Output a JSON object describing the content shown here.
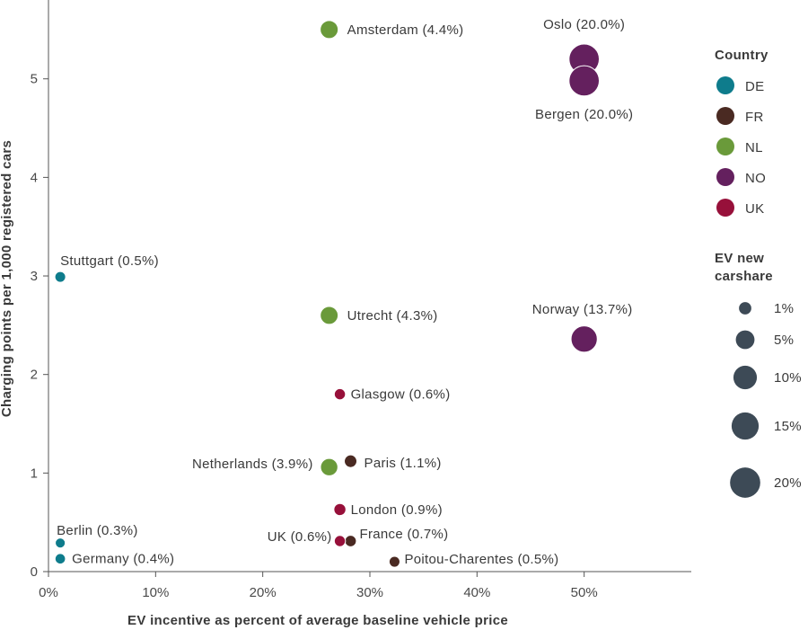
{
  "chart_data": {
    "type": "scatter",
    "xlabel": "EV incentive as percent of average baseline vehicle price",
    "ylabel": "Charging points per 1,000 registered cars",
    "xlim": [
      0,
      60
    ],
    "ylim": [
      0,
      5.8
    ],
    "x_ticks": [
      0,
      10,
      20,
      30,
      40,
      50
    ],
    "x_tick_labels": [
      "0%",
      "10%",
      "20%",
      "30%",
      "40%",
      "50%"
    ],
    "y_ticks": [
      0,
      1,
      2,
      3,
      4,
      5
    ],
    "y_tick_labels": [
      "0",
      "1",
      "2",
      "3",
      "4",
      "5"
    ],
    "size_encoding": "EV new carshare (%)",
    "colors": {
      "DE": "#0e7c8c",
      "FR": "#4a2a22",
      "NL": "#6a9a3a",
      "NO": "#64205e",
      "UK": "#97103a"
    },
    "points": [
      {
        "label": "Amsterdam (4.4%)",
        "country": "NL",
        "x": 26.2,
        "y": 5.5,
        "share": 4.4
      },
      {
        "label": "Oslo (20.0%)",
        "country": "NO",
        "x": 50.0,
        "y": 5.2,
        "share": 20.0
      },
      {
        "label": "Bergen (20.0%)",
        "country": "NO",
        "x": 50.0,
        "y": 4.98,
        "share": 20.0
      },
      {
        "label": "Stuttgart (0.5%)",
        "country": "DE",
        "x": 1.1,
        "y": 2.99,
        "share": 0.5
      },
      {
        "label": "Utrecht (4.3%)",
        "country": "NL",
        "x": 26.2,
        "y": 2.6,
        "share": 4.3
      },
      {
        "label": "Norway (13.7%)",
        "country": "NO",
        "x": 50.0,
        "y": 2.36,
        "share": 13.7
      },
      {
        "label": "Glasgow (0.6%)",
        "country": "UK",
        "x": 27.2,
        "y": 1.8,
        "share": 0.6
      },
      {
        "label": "Netherlands (3.9%)",
        "country": "NL",
        "x": 26.2,
        "y": 1.06,
        "share": 3.9
      },
      {
        "label": "Paris (1.1%)",
        "country": "FR",
        "x": 28.2,
        "y": 1.12,
        "share": 1.1
      },
      {
        "label": "London (0.9%)",
        "country": "UK",
        "x": 27.2,
        "y": 0.63,
        "share": 0.9
      },
      {
        "label": "Berlin (0.3%)",
        "country": "DE",
        "x": 1.1,
        "y": 0.29,
        "share": 0.3
      },
      {
        "label": "Germany (0.4%)",
        "country": "DE",
        "x": 1.1,
        "y": 0.13,
        "share": 0.4
      },
      {
        "label": "UK (0.6%)",
        "country": "UK",
        "x": 27.2,
        "y": 0.31,
        "share": 0.6
      },
      {
        "label": "France (0.7%)",
        "country": "FR",
        "x": 28.2,
        "y": 0.31,
        "share": 0.7
      },
      {
        "label": "Poitou-Charentes (0.5%)",
        "country": "FR",
        "x": 32.3,
        "y": 0.1,
        "share": 0.5
      }
    ],
    "legend": {
      "placement": "right",
      "color_title": "Country",
      "color_entries": [
        "DE",
        "FR",
        "NL",
        "NO",
        "UK"
      ],
      "size_title_line1": "EV new",
      "size_title_line2": "carshare",
      "size_entries": [
        {
          "label": "1%",
          "share": 1
        },
        {
          "label": "5%",
          "share": 5
        },
        {
          "label": "10%",
          "share": 10
        },
        {
          "label": "15%",
          "share": 15
        },
        {
          "label": "20%",
          "share": 20
        }
      ],
      "size_color": "#3d4a56"
    }
  }
}
